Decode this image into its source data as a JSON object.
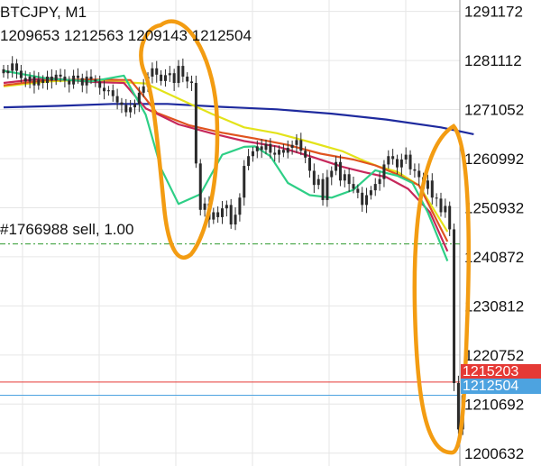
{
  "header": {
    "symbol": "BTCJPY, M1",
    "ohlc": "1209653 1212563 1209143 1212504"
  },
  "order_line": {
    "label": "#1766988 sell, 1.00",
    "price": 1243500,
    "color": "#2e9a2e"
  },
  "price_lines": {
    "ask": {
      "value": 1215203,
      "label": "1215203",
      "color": "#e53935"
    },
    "bid": {
      "value": 1212504,
      "label": "1212504",
      "color": "#4da3e0"
    }
  },
  "colors": {
    "candle": "#2b2b2b",
    "annotation": "#f39c12",
    "grid": "#e6e6e6",
    "axis_text": "#111111"
  },
  "chart_data": {
    "type": "line",
    "title": "BTCJPY, M1",
    "xlabel": "",
    "ylabel": "",
    "ylim": [
      1198000,
      1293500
    ],
    "grid": true,
    "y_ticks": [
      1291172,
      1281112,
      1271052,
      1260992,
      1250932,
      1240872,
      1230812,
      1220752,
      1210692,
      1200632
    ],
    "x_ticks": [],
    "candles_close": [
      1278500,
      1279000,
      1280500,
      1279000,
      1277500,
      1276800,
      1277800,
      1276000,
      1277200,
      1276500,
      1277800,
      1277000,
      1278200,
      1277800,
      1277000,
      1276200,
      1278000,
      1277500,
      1276000,
      1277800,
      1277200,
      1276800,
      1275500,
      1274800,
      1275000,
      1273800,
      1272500,
      1272000,
      1270500,
      1271500,
      1272200,
      1274500,
      1275800,
      1277800,
      1279500,
      1278200,
      1276900,
      1278100,
      1278500,
      1276500,
      1280000,
      1277800,
      1276800,
      1276500,
      1260000,
      1250500,
      1251800,
      1248500,
      1250000,
      1249000,
      1250800,
      1251500,
      1247500,
      1249500,
      1253000,
      1259500,
      1261500,
      1262500,
      1263500,
      1262800,
      1264000,
      1262200,
      1261800,
      1262800,
      1262200,
      1263200,
      1263800,
      1264800,
      1262600,
      1261200,
      1258500,
      1255600,
      1256800,
      1252500,
      1257200,
      1258500,
      1260300,
      1256500,
      1257800,
      1255800,
      1254800,
      1254000,
      1251500,
      1253500,
      1254500,
      1255800,
      1256800,
      1259800,
      1261500,
      1260900,
      1259200,
      1260800,
      1261800,
      1258800,
      1258500,
      1257200,
      1254800,
      1256500,
      1253000,
      1252800,
      1250000,
      1251300,
      1246500,
      1215000,
      1205500,
      1212504
    ],
    "series": [
      {
        "name": "",
        "color": "#1e2a9e",
        "values": [
          [
            0,
            1271500
          ],
          [
            25,
            1271800
          ],
          [
            50,
            1272200
          ],
          [
            75,
            1272200
          ],
          [
            100,
            1271600
          ],
          [
            125,
            1271100
          ],
          [
            150,
            1270200
          ],
          [
            175,
            1269000
          ],
          [
            200,
            1267400
          ],
          [
            215,
            1266000
          ]
        ]
      },
      {
        "name": "",
        "color": "#e3e31a",
        "values": [
          [
            0,
            1275800
          ],
          [
            20,
            1276800
          ],
          [
            35,
            1277100
          ],
          [
            50,
            1276800
          ],
          [
            65,
            1276400
          ],
          [
            80,
            1273300
          ],
          [
            95,
            1270200
          ],
          [
            110,
            1267400
          ],
          [
            125,
            1266200
          ],
          [
            140,
            1264400
          ],
          [
            155,
            1262500
          ],
          [
            165,
            1260500
          ],
          [
            172,
            1259300
          ],
          [
            180,
            1258300
          ],
          [
            190,
            1255500
          ],
          [
            203,
            1246000
          ]
        ]
      },
      {
        "name": "",
        "color": "#e0531f",
        "values": [
          [
            0,
            1276000
          ],
          [
            20,
            1277100
          ],
          [
            40,
            1277200
          ],
          [
            58,
            1277100
          ],
          [
            64,
            1273800
          ],
          [
            70,
            1270400
          ],
          [
            85,
            1267800
          ],
          [
            100,
            1266300
          ],
          [
            115,
            1265100
          ],
          [
            130,
            1263800
          ],
          [
            145,
            1262000
          ],
          [
            160,
            1260800
          ],
          [
            170,
            1259600
          ],
          [
            180,
            1257800
          ],
          [
            190,
            1255500
          ],
          [
            203,
            1244000
          ]
        ]
      },
      {
        "name": "",
        "color": "#c6285b",
        "values": [
          [
            0,
            1276500
          ],
          [
            20,
            1277500
          ],
          [
            40,
            1276700
          ],
          [
            55,
            1276500
          ],
          [
            65,
            1271300
          ],
          [
            80,
            1268000
          ],
          [
            95,
            1266200
          ],
          [
            110,
            1264600
          ],
          [
            125,
            1263500
          ],
          [
            140,
            1261500
          ],
          [
            155,
            1259300
          ],
          [
            165,
            1258200
          ],
          [
            175,
            1257200
          ],
          [
            185,
            1254800
          ],
          [
            195,
            1250000
          ],
          [
            203,
            1242000
          ]
        ]
      },
      {
        "name": "",
        "color": "#2ecf86",
        "values": [
          [
            0,
            1279000
          ],
          [
            20,
            1277400
          ],
          [
            40,
            1276800
          ],
          [
            55,
            1278000
          ],
          [
            65,
            1270000
          ],
          [
            72,
            1259000
          ],
          [
            80,
            1251700
          ],
          [
            90,
            1253700
          ],
          [
            100,
            1261800
          ],
          [
            110,
            1263400
          ],
          [
            115,
            1263500
          ],
          [
            122,
            1261500
          ],
          [
            130,
            1256000
          ],
          [
            140,
            1253500
          ],
          [
            150,
            1253000
          ],
          [
            160,
            1254600
          ],
          [
            170,
            1258600
          ],
          [
            180,
            1257500
          ],
          [
            187,
            1256000
          ],
          [
            194,
            1250000
          ],
          [
            203,
            1240000
          ]
        ]
      }
    ]
  }
}
